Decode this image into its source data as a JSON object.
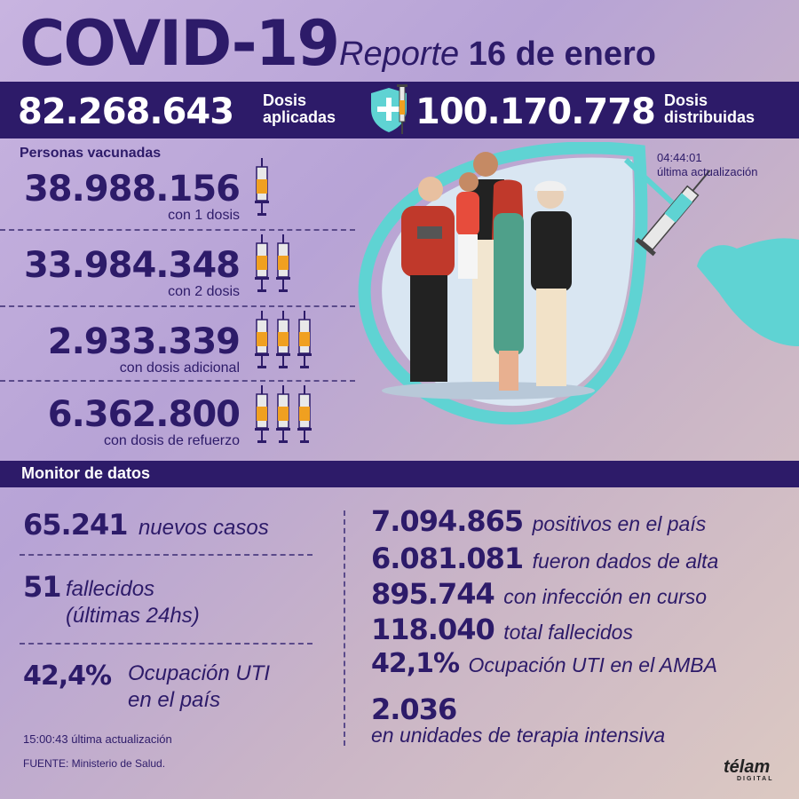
{
  "header": {
    "title": "COVID-19",
    "report_word": "Reporte",
    "report_date": "16 de enero"
  },
  "doses": {
    "applied_value": "82.268.643",
    "applied_label_1": "Dosis",
    "applied_label_2": "aplicadas",
    "distributed_value": "100.170.778",
    "distributed_label_1": "Dosis",
    "distributed_label_2": "distribuidas"
  },
  "vaccinated": {
    "section_label": "Personas vacunadas",
    "update_time": "04:44:01",
    "update_label": "última actualización",
    "rows": [
      {
        "value": "38.988.156",
        "label": "con 1 dosis",
        "syringes": 1
      },
      {
        "value": "33.984.348",
        "label": "con 2 dosis",
        "syringes": 2
      },
      {
        "value": "2.933.339",
        "label": "con dosis adicional",
        "syringes": 3
      },
      {
        "value": "6.362.800",
        "label": "con dosis de refuerzo",
        "syringes": 3
      }
    ]
  },
  "monitor": {
    "title": "Monitor de datos",
    "new_cases_value": "65.241",
    "new_cases_label": "nuevos casos",
    "deaths_value": "51",
    "deaths_label_1": "fallecidos",
    "deaths_label_2": "(últimas 24hs)",
    "icu_value": "42,4%",
    "icu_label_1": "Ocupación UTI",
    "icu_label_2": "en el país",
    "update_time": "15:00:43",
    "update_label": "última actualización",
    "source": "FUENTE: Ministerio de Salud.",
    "right": [
      {
        "value": "7.094.865",
        "label": "positivos en el país"
      },
      {
        "value": "6.081.081",
        "label": "fueron dados de alta"
      },
      {
        "value": "895.744",
        "label": "con infección en curso"
      },
      {
        "value": "118.040",
        "label": "total fallecidos"
      },
      {
        "value": "42,1%",
        "label": "Ocupación UTI en el AMBA"
      }
    ],
    "icu_total_value": "2.036",
    "icu_total_label": "en unidades de terapia intensiva"
  },
  "brand": {
    "logo": "télam",
    "logo_sub": "DIGITAL"
  },
  "colors": {
    "primary": "#2d1b69",
    "teal": "#5fd3d3",
    "syringe_orange": "#f0a020"
  }
}
